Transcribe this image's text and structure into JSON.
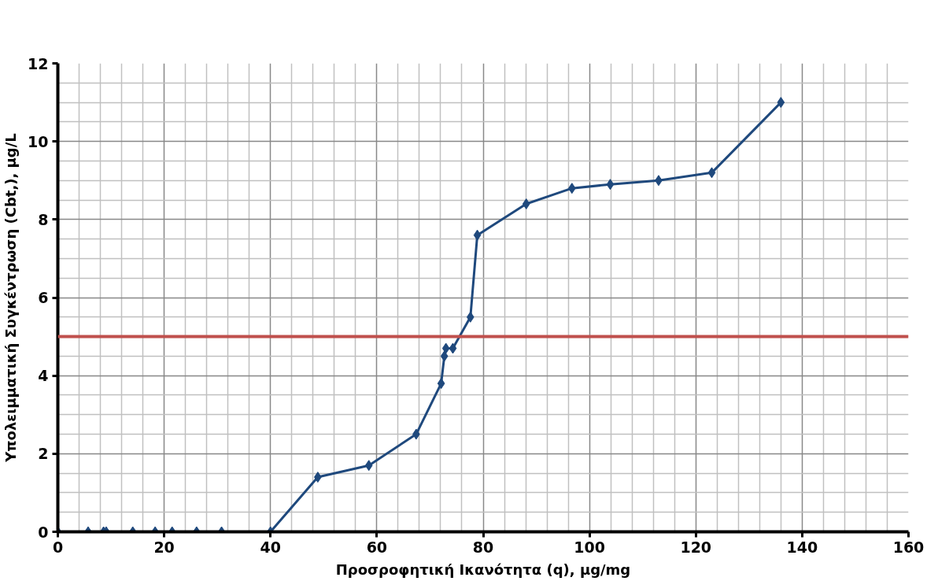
{
  "chart_data": {
    "type": "line",
    "xlabel": "Προσροφητική Ικανότητα (q), μg/mg",
    "ylabel": "Υπολειμματική Συγκέντρωση (Cbt,), μg/L",
    "x": [
      0,
      5.7,
      8.6,
      9.1,
      14.1,
      18.3,
      21.5,
      26.1,
      30.8,
      40,
      48.9,
      58.5,
      67.4,
      72.1,
      72.7,
      73.0,
      74.3,
      77.6,
      78.9,
      88.1,
      96.7,
      103.9,
      113,
      123,
      136
    ],
    "series": [
      {
        "color": "#1f497d",
        "values": [
          0,
          0,
          0,
          0,
          0,
          0,
          0,
          0,
          0,
          0,
          1.4,
          1.7,
          2.5,
          3.8,
          4.5,
          4.7,
          4.7,
          5.5,
          7.6,
          8.4,
          8.8,
          8.9,
          9.0,
          9.2,
          11.0
        ]
      }
    ],
    "xlim": [
      0,
      160
    ],
    "xticks": [
      0,
      20,
      40,
      60,
      80,
      100,
      120,
      140,
      160
    ],
    "ylim": [
      0,
      12
    ],
    "yticks": [
      0,
      2,
      4,
      6,
      8,
      10,
      12
    ],
    "ref_lines": [
      {
        "axis": "y",
        "value": 5,
        "color": "#c0504d"
      }
    ],
    "grid": true,
    "marker": "diamond",
    "line_style": "solid"
  }
}
